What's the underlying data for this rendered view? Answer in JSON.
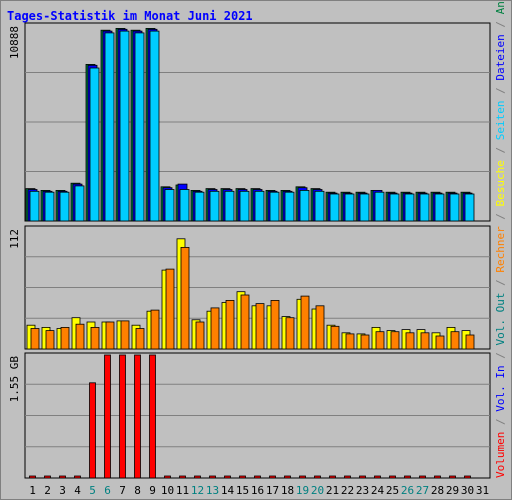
{
  "title": "Tages-Statistik im Monat Juni 2021",
  "legend": [
    {
      "label": "Volumen",
      "color": "#ff0000"
    },
    {
      "label": " / ",
      "color": "#808080"
    },
    {
      "label": "Vol. In",
      "color": "#0000ff"
    },
    {
      "label": " / ",
      "color": "#808080"
    },
    {
      "label": "Vol. Out",
      "color": "#008080"
    },
    {
      "label": " / ",
      "color": "#808080"
    },
    {
      "label": "Rechner",
      "color": "#ff8000"
    },
    {
      "label": " / ",
      "color": "#808080"
    },
    {
      "label": "Besuche",
      "color": "#ffff00"
    },
    {
      "label": " / ",
      "color": "#808080"
    },
    {
      "label": "Seiten",
      "color": "#00ccff"
    },
    {
      "label": " / ",
      "color": "#808080"
    },
    {
      "label": "Dateien",
      "color": "#0000ff"
    },
    {
      "label": " / ",
      "color": "#808080"
    },
    {
      "label": "Anfragen",
      "color": "#008040"
    }
  ],
  "chart_data": [
    {
      "type": "bar",
      "panel": "hits",
      "y_label": "10888",
      "ylim": [
        0,
        10888
      ],
      "categories": [
        "1",
        "2",
        "3",
        "4",
        "5",
        "6",
        "7",
        "8",
        "9",
        "10",
        "11",
        "12",
        "13",
        "14",
        "15",
        "16",
        "17",
        "18",
        "19",
        "20",
        "21",
        "22",
        "23",
        "24",
        "25",
        "26",
        "27",
        "28",
        "29",
        "30",
        "31"
      ],
      "series": [
        {
          "key": "anfragen",
          "color": "#008040",
          "values": [
            1800,
            1700,
            1700,
            2100,
            8700,
            10600,
            10700,
            10600,
            10700,
            1900,
            2000,
            1700,
            1800,
            1800,
            1800,
            1800,
            1700,
            1700,
            1900,
            1800,
            1600,
            1600,
            1600,
            1700,
            1600,
            1600,
            1600,
            1600,
            1600,
            1600,
            null
          ]
        },
        {
          "key": "dateien",
          "color": "#0000ff",
          "values": [
            1750,
            1650,
            1650,
            2050,
            8650,
            10550,
            10650,
            10550,
            10650,
            1850,
            2050,
            1650,
            1750,
            1750,
            1750,
            1750,
            1650,
            1650,
            1850,
            1750,
            1550,
            1550,
            1550,
            1700,
            1550,
            1550,
            1550,
            1550,
            1550,
            1550,
            null
          ]
        },
        {
          "key": "seiten",
          "color": "#00ccff",
          "values": [
            1650,
            1600,
            1600,
            1950,
            8500,
            10450,
            10550,
            10450,
            10550,
            1750,
            1750,
            1600,
            1650,
            1650,
            1650,
            1650,
            1600,
            1600,
            1700,
            1650,
            1500,
            1500,
            1500,
            1600,
            1500,
            1500,
            1500,
            1500,
            1500,
            1500,
            null
          ]
        }
      ]
    },
    {
      "type": "bar",
      "panel": "visits",
      "y_label": "112",
      "ylim": [
        0,
        112
      ],
      "categories": [
        "1",
        "2",
        "3",
        "4",
        "5",
        "6",
        "7",
        "8",
        "9",
        "10",
        "11",
        "12",
        "13",
        "14",
        "15",
        "16",
        "17",
        "18",
        "19",
        "20",
        "21",
        "22",
        "23",
        "24",
        "25",
        "26",
        "27",
        "28",
        "29",
        "30",
        "31"
      ],
      "series": [
        {
          "key": "besuche",
          "color": "#ffff00",
          "values": [
            22,
            20,
            19,
            29,
            25,
            25,
            26,
            22,
            35,
            73,
            102,
            27,
            35,
            43,
            53,
            40,
            40,
            30,
            46,
            37,
            22,
            15,
            14,
            20,
            17,
            18,
            18,
            15,
            20,
            17,
            null
          ]
        },
        {
          "key": "rechner",
          "color": "#ff8000",
          "values": [
            19,
            17,
            20,
            23,
            20,
            25,
            26,
            19,
            36,
            74,
            94,
            25,
            38,
            45,
            50,
            42,
            45,
            29,
            49,
            40,
            21,
            14,
            13,
            16,
            16,
            15,
            15,
            12,
            16,
            13,
            null
          ]
        }
      ]
    },
    {
      "type": "bar",
      "panel": "volume",
      "y_label": "1.55 GB",
      "ylim": [
        0,
        1.55
      ],
      "categories": [
        "1",
        "2",
        "3",
        "4",
        "5",
        "6",
        "7",
        "8",
        "9",
        "10",
        "11",
        "12",
        "13",
        "14",
        "15",
        "16",
        "17",
        "18",
        "19",
        "20",
        "21",
        "22",
        "23",
        "24",
        "25",
        "26",
        "27",
        "28",
        "29",
        "30",
        "31"
      ],
      "series": [
        {
          "key": "volumen",
          "color": "#ff0000",
          "values": [
            0.01,
            0.01,
            0.01,
            0.01,
            1.2,
            1.55,
            1.55,
            1.55,
            1.55,
            0.01,
            0.01,
            0.01,
            0.01,
            0.01,
            0.01,
            0.01,
            0.01,
            0.01,
            0.01,
            0.01,
            0.01,
            0.01,
            0.01,
            0.01,
            0.01,
            0.01,
            0.01,
            0.01,
            0.01,
            0.01,
            null
          ]
        }
      ]
    }
  ],
  "x_axis": {
    "labels": [
      "1",
      "2",
      "3",
      "4",
      "5",
      "6",
      "7",
      "8",
      "9",
      "10",
      "11",
      "12",
      "13",
      "14",
      "15",
      "16",
      "17",
      "18",
      "19",
      "20",
      "21",
      "22",
      "23",
      "24",
      "25",
      "26",
      "27",
      "28",
      "29",
      "30",
      "31"
    ],
    "weekend": [
      "5",
      "6",
      "12",
      "13",
      "19",
      "20",
      "26",
      "27"
    ],
    "weekday_color": "#000000",
    "weekend_color": "#008080"
  }
}
